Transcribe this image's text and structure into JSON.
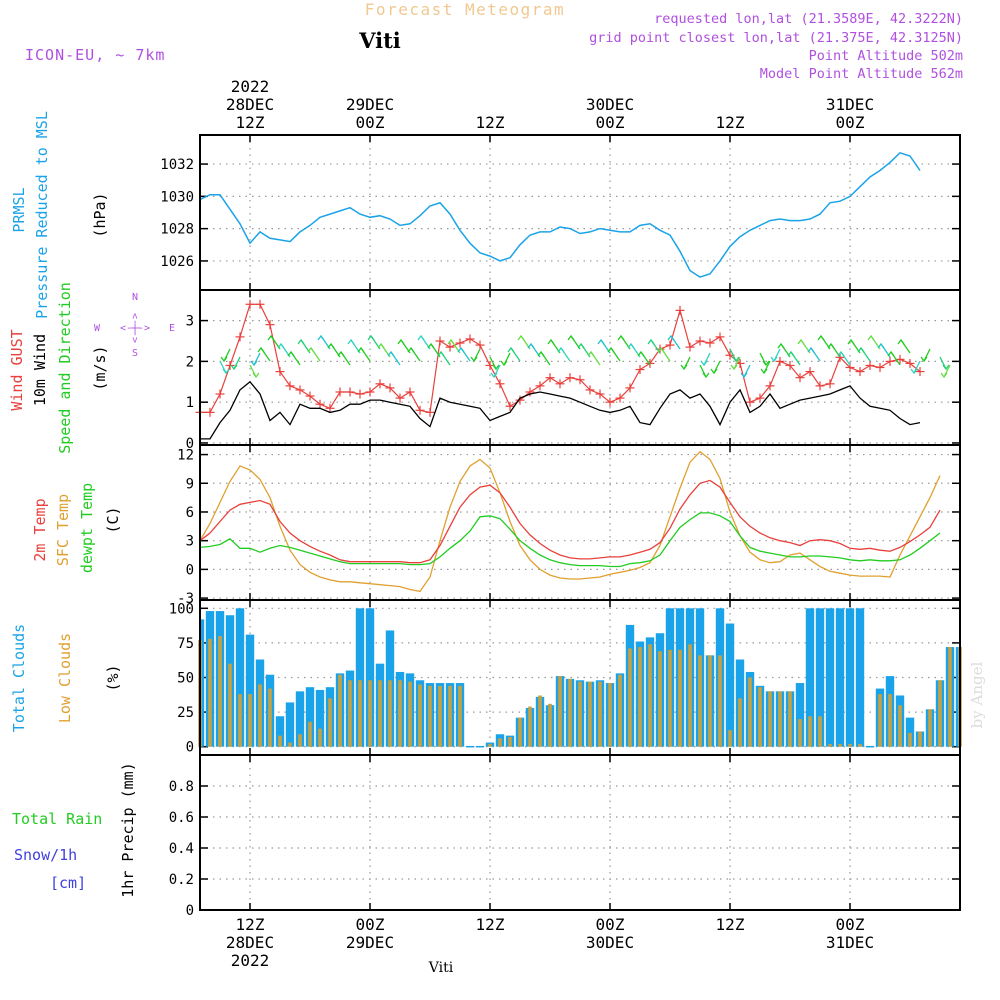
{
  "header": {
    "super_title": "Forecast Meteogram",
    "station": "Viti",
    "model": "ICON-EU, ~ 7km",
    "requested": "requested lon,lat (21.3589E, 42.3222N)",
    "closest": "grid point closest lon,lat (21.375E, 42.3125N)",
    "point_alt": "Point Altitude 502m",
    "model_alt": "Model Point Altitude 562m",
    "footer_station": "Viti",
    "watermark": "by Angel",
    "compass": {
      "n": "N",
      "s": "S",
      "w": "W",
      "e": "E",
      "arrows": "<-|->"
    }
  },
  "time_axis": {
    "top_year": "2022",
    "ticks": [
      {
        "h": 12,
        "upper": "28DEC",
        "lower": "12Z",
        "year": "2022"
      },
      {
        "h": 24,
        "upper": "29DEC",
        "lower": "00Z"
      },
      {
        "h": 36,
        "upper": "",
        "lower": "12Z"
      },
      {
        "h": 48,
        "upper": "30DEC",
        "lower": "00Z"
      },
      {
        "h": 60,
        "upper": "",
        "lower": "12Z"
      },
      {
        "h": 72,
        "upper": "31DEC",
        "lower": "00Z"
      }
    ],
    "range_hours": [
      7,
      83
    ]
  },
  "colors": {
    "pressure": "#1aa3e8",
    "gust": "#e8403c",
    "wind": "#000000",
    "temp2m": "#e8403c",
    "sfc": "#e0a030",
    "dewpt": "#22cc22",
    "total_clouds": "#1aa3e8",
    "low_clouds": "#c8a040",
    "label_purple": "#b050e0",
    "rain_label": "#22cc22",
    "snow_label": "#4040e0",
    "title_color": "#f0c890"
  },
  "panels": {
    "pressure": {
      "label_main": "PRMSL",
      "label_sub": "Pressure Reduced to MSL",
      "unit": "(hPa)"
    },
    "wind": {
      "label_gust": "Wind GUST",
      "label_wind": "10m Wind",
      "label_dir": "Speed and Direction",
      "unit": "(m/s)"
    },
    "temp": {
      "label_t": "2m Temp",
      "label_sfc": "SFC Temp",
      "label_dew": "dewpt Temp",
      "unit": "(C)"
    },
    "clouds": {
      "label_total": "Total Clouds",
      "label_low": "Low Clouds",
      "unit": "(%)"
    },
    "precip": {
      "label_rain": "Total  Rain",
      "label_snow": "Snow/1h",
      "label_cm": "[cm]",
      "axis_label": "1hr Precip (mm)"
    }
  },
  "chart_data": [
    {
      "type": "line",
      "name": "pressure",
      "ylabel": "(hPa)",
      "ylim": [
        1024.2,
        1033.8
      ],
      "yticks": [
        1026,
        1028,
        1030,
        1032
      ],
      "x_start_hour": 7,
      "x_step_hours": 1,
      "series": [
        {
          "name": "PRMSL",
          "values": [
            1029.8,
            1030.1,
            1030.1,
            1029.2,
            1028.3,
            1027.1,
            1027.8,
            1027.4,
            1027.3,
            1027.2,
            1027.8,
            1028.2,
            1028.7,
            1028.9,
            1029.1,
            1029.3,
            1028.9,
            1028.7,
            1028.8,
            1028.6,
            1028.2,
            1028.3,
            1028.8,
            1029.4,
            1029.6,
            1028.9,
            1027.9,
            1027.1,
            1026.5,
            1026.3,
            1026.0,
            1026.2,
            1027.0,
            1027.6,
            1027.8,
            1027.8,
            1028.1,
            1028.0,
            1027.7,
            1027.8,
            1028.0,
            1027.9,
            1027.8,
            1027.8,
            1028.2,
            1028.3,
            1027.9,
            1027.6,
            1026.6,
            1025.4,
            1025.0,
            1025.2,
            1026.0,
            1026.9,
            1027.5,
            1027.9,
            1028.2,
            1028.5,
            1028.6,
            1028.5,
            1028.5,
            1028.6,
            1028.9,
            1029.6,
            1029.7,
            1030.0,
            1030.6,
            1031.2,
            1031.6,
            1032.1,
            1032.7,
            1032.5,
            1031.6
          ]
        }
      ]
    },
    {
      "type": "line",
      "name": "wind",
      "ylabel": "(m/s)",
      "ylim": [
        -0.05,
        3.75
      ],
      "yticks": [
        0,
        1,
        2,
        3
      ],
      "x_start_hour": 7,
      "x_step_hours": 1,
      "series": [
        {
          "name": "Wind GUST",
          "values": [
            0.75,
            0.75,
            1.2,
            1.9,
            2.6,
            3.4,
            3.4,
            2.9,
            1.75,
            1.4,
            1.3,
            1.15,
            0.95,
            0.85,
            1.25,
            1.25,
            1.2,
            1.25,
            1.45,
            1.35,
            1.1,
            1.25,
            0.8,
            0.75,
            2.5,
            2.35,
            2.45,
            2.55,
            2.4,
            1.9,
            1.45,
            0.9,
            1.05,
            1.25,
            1.4,
            1.6,
            1.45,
            1.6,
            1.55,
            1.3,
            1.2,
            1.0,
            1.1,
            1.35,
            1.8,
            1.95,
            2.3,
            2.4,
            3.25,
            2.35,
            2.5,
            2.45,
            2.6,
            2.15,
            1.95,
            1.0,
            1.1,
            1.4,
            2.0,
            1.9,
            1.6,
            1.75,
            1.4,
            1.45,
            2.1,
            1.85,
            1.75,
            1.9,
            1.85,
            2.0,
            2.05,
            1.95,
            1.75
          ]
        },
        {
          "name": "10m Wind",
          "values": [
            0.1,
            0.1,
            0.5,
            0.8,
            1.3,
            1.5,
            1.2,
            0.55,
            0.75,
            0.45,
            0.95,
            0.85,
            0.85,
            0.75,
            0.8,
            0.95,
            0.95,
            1.05,
            1.05,
            1.0,
            0.95,
            0.9,
            0.6,
            0.4,
            1.1,
            1.0,
            0.95,
            0.9,
            0.85,
            0.55,
            0.65,
            0.75,
            1.1,
            1.2,
            1.25,
            1.2,
            1.15,
            1.1,
            1.0,
            0.9,
            0.8,
            0.75,
            0.8,
            0.9,
            0.5,
            0.45,
            0.85,
            1.2,
            1.3,
            1.1,
            1.2,
            0.9,
            0.45,
            1.0,
            1.3,
            0.75,
            0.9,
            1.2,
            0.85,
            0.95,
            1.05,
            1.1,
            1.15,
            1.2,
            1.3,
            1.4,
            1.1,
            0.9,
            0.85,
            0.8,
            0.6,
            0.45,
            0.5
          ]
        }
      ]
    },
    {
      "type": "line",
      "name": "temperature",
      "ylabel": "(C)",
      "ylim": [
        -3.2,
        13.0
      ],
      "yticks": [
        -3,
        0,
        3,
        6,
        9,
        12
      ],
      "x_start_hour": 7,
      "x_step_hours": 1,
      "series": [
        {
          "name": "2m Temp",
          "values": [
            3.0,
            3.8,
            5.0,
            6.2,
            6.8,
            7.0,
            7.2,
            6.8,
            5.0,
            3.8,
            3.0,
            2.4,
            1.9,
            1.5,
            1.0,
            0.8,
            0.8,
            0.8,
            0.8,
            0.8,
            0.8,
            0.7,
            0.7,
            1.0,
            2.5,
            4.5,
            6.5,
            7.8,
            8.6,
            8.8,
            8.0,
            6.5,
            4.8,
            3.6,
            2.7,
            2.0,
            1.5,
            1.2,
            1.1,
            1.1,
            1.2,
            1.3,
            1.3,
            1.5,
            1.8,
            2.1,
            2.8,
            4.3,
            6.3,
            7.8,
            9.0,
            9.3,
            8.6,
            7.0,
            5.5,
            4.5,
            3.8,
            3.3,
            3.0,
            2.8,
            2.5,
            3.0,
            3.1,
            3.0,
            2.7,
            2.2,
            2.1,
            2.2,
            2.0,
            1.9,
            2.3,
            2.9,
            3.6,
            4.4,
            6.2
          ]
        },
        {
          "name": "SFC Temp",
          "values": [
            3.0,
            4.8,
            7.0,
            9.2,
            10.8,
            10.4,
            9.4,
            7.5,
            4.5,
            2.0,
            0.5,
            -0.3,
            -0.8,
            -1.1,
            -1.3,
            -1.3,
            -1.4,
            -1.5,
            -1.6,
            -1.7,
            -1.8,
            -2.1,
            -2.3,
            -0.8,
            3.0,
            6.5,
            9.2,
            10.8,
            11.5,
            10.6,
            8.0,
            5.0,
            2.5,
            1.0,
            0.0,
            -0.6,
            -0.9,
            -1.0,
            -1.0,
            -0.9,
            -0.8,
            -0.5,
            -0.3,
            -0.1,
            0.2,
            0.7,
            2.5,
            5.5,
            8.5,
            11.2,
            12.3,
            11.5,
            9.5,
            6.0,
            3.5,
            1.8,
            1.0,
            0.7,
            0.8,
            1.5,
            1.7,
            1.0,
            0.3,
            -0.2,
            -0.4,
            -0.6,
            -0.7,
            -0.7,
            -0.7,
            -0.8,
            1.5,
            3.5,
            5.5,
            7.5,
            9.8
          ]
        },
        {
          "name": "dewpt Temp",
          "values": [
            2.3,
            2.4,
            2.6,
            3.2,
            2.2,
            2.2,
            1.8,
            2.2,
            2.5,
            2.3,
            2.0,
            1.7,
            1.4,
            1.1,
            0.8,
            0.6,
            0.6,
            0.6,
            0.6,
            0.6,
            0.6,
            0.5,
            0.5,
            0.6,
            1.3,
            2.2,
            3.0,
            4.0,
            5.5,
            5.6,
            5.3,
            4.2,
            3.0,
            2.2,
            1.5,
            1.0,
            0.7,
            0.5,
            0.4,
            0.4,
            0.4,
            0.3,
            0.3,
            0.6,
            0.7,
            0.9,
            1.5,
            3.0,
            4.4,
            5.2,
            5.9,
            5.9,
            5.6,
            5.0,
            3.5,
            2.3,
            1.9,
            1.7,
            1.5,
            1.3,
            1.3,
            1.4,
            1.4,
            1.3,
            1.2,
            1.0,
            0.9,
            1.0,
            0.9,
            0.9,
            1.0,
            1.5,
            2.2,
            3.0,
            3.8
          ]
        }
      ]
    },
    {
      "type": "bar",
      "name": "clouds",
      "ylabel": "(%)",
      "ylim": [
        -6,
        106
      ],
      "yticks": [
        0,
        25,
        50,
        75,
        100
      ],
      "x_start_hour": 7,
      "x_step_hours": 1,
      "series": [
        {
          "name": "Total Clouds",
          "values": [
            92,
            98,
            98,
            95,
            100,
            81,
            63,
            52,
            22,
            32,
            40,
            43,
            41,
            43,
            53,
            55,
            100,
            100,
            60,
            84,
            54,
            53,
            48,
            46,
            46,
            46,
            46,
            0,
            0,
            3,
            9,
            8,
            21,
            28,
            36,
            30,
            51,
            49,
            48,
            47,
            48,
            46,
            53,
            88,
            76,
            79,
            82,
            100,
            100,
            100,
            100,
            66,
            100,
            89,
            63,
            54,
            44,
            40,
            40,
            40,
            46,
            100,
            100,
            100,
            100,
            100,
            100,
            0,
            42,
            51,
            37,
            21,
            11,
            27,
            48,
            72,
            72,
            72,
            72,
            72,
            42
          ]
        },
        {
          "name": "Low Clouds",
          "values": [
            77,
            78,
            80,
            60,
            38,
            38,
            45,
            42,
            8,
            3,
            9,
            18,
            13,
            35,
            52,
            48,
            48,
            48,
            48,
            48,
            48,
            47,
            45,
            44,
            44,
            44,
            44,
            0,
            0,
            2,
            6,
            7,
            21,
            29,
            37,
            31,
            51,
            49,
            47,
            47,
            47,
            46,
            52,
            71,
            72,
            74,
            69,
            70,
            70,
            74,
            66,
            66,
            66,
            12,
            35,
            50,
            43,
            40,
            40,
            40,
            20,
            22,
            22,
            2,
            2,
            2,
            2,
            0,
            38,
            38,
            30,
            10,
            11,
            27,
            48,
            72,
            72,
            72,
            72,
            72,
            42
          ]
        }
      ]
    },
    {
      "type": "bar",
      "name": "precipitation",
      "ylabel": "1hr Precip (mm)",
      "ylim": [
        0,
        1.0
      ],
      "yticks": [
        0,
        0.2,
        0.4,
        0.6,
        0.8
      ],
      "series": []
    }
  ]
}
